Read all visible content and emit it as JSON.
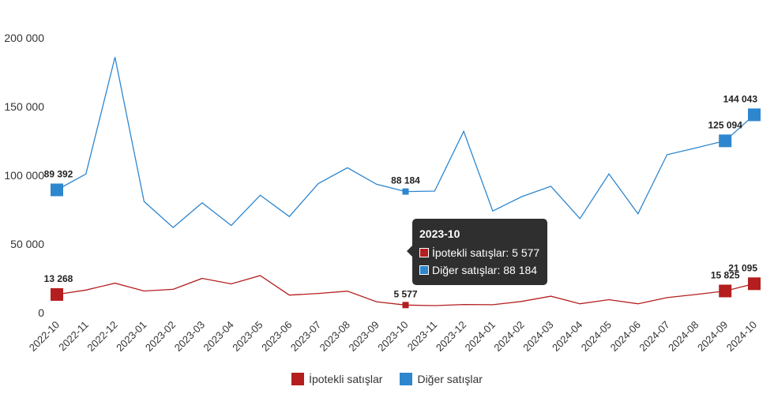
{
  "chart_data": {
    "type": "line",
    "x": [
      "2022-10",
      "2022-11",
      "2022-12",
      "2023-01",
      "2023-02",
      "2023-03",
      "2023-04",
      "2023-05",
      "2023-06",
      "2023-07",
      "2023-08",
      "2023-09",
      "2023-10",
      "2023-11",
      "2023-12",
      "2024-01",
      "2024-02",
      "2024-03",
      "2024-04",
      "2024-05",
      "2024-06",
      "2024-07",
      "2024-08",
      "2024-09",
      "2024-10"
    ],
    "series": [
      {
        "name": "İpotekli satışlar",
        "color": "#b41e1e",
        "values": [
          13268,
          16500,
          21500,
          15800,
          17000,
          25000,
          21000,
          27000,
          12800,
          14000,
          15700,
          8000,
          5577,
          5200,
          6000,
          5800,
          8200,
          12000,
          6500,
          9500,
          6500,
          11000,
          13300,
          15825,
          21095
        ]
      },
      {
        "name": "Diğer satışlar",
        "color": "#2e86cf",
        "values": [
          89392,
          101000,
          186000,
          81000,
          62000,
          80000,
          63500,
          85500,
          70000,
          94000,
          105500,
          93500,
          88184,
          88500,
          132000,
          74000,
          84500,
          92000,
          68500,
          101000,
          72000,
          115000,
          120000,
          125094,
          144043
        ]
      }
    ],
    "highlight_indices": [
      0,
      12,
      23,
      24
    ],
    "data_labels": {
      "İpotekli satışlar": {
        "0": "13 268",
        "12": "5 577",
        "23": "15 825",
        "24": "21 095"
      },
      "Diğer satışlar": {
        "0": "89 392",
        "12": "88 184",
        "23": "125 094",
        "24": "144 043"
      }
    },
    "yticks": [
      "0",
      "50 000",
      "100 000",
      "150 000",
      "200 000"
    ],
    "ylim": [
      0,
      200000
    ],
    "grid": false,
    "legend_position": "bottom-center"
  },
  "tooltip": {
    "title": "2023-10",
    "rows": [
      {
        "text": "İpotekli satışlar: 5 577",
        "color": "#b41e1e"
      },
      {
        "text": "Diğer satışlar: 88 184",
        "color": "#2e86cf"
      }
    ]
  },
  "legend": [
    {
      "label": "İpotekli satışlar",
      "color": "#b41e1e"
    },
    {
      "label": "Diğer satışlar",
      "color": "#2e86cf"
    }
  ]
}
